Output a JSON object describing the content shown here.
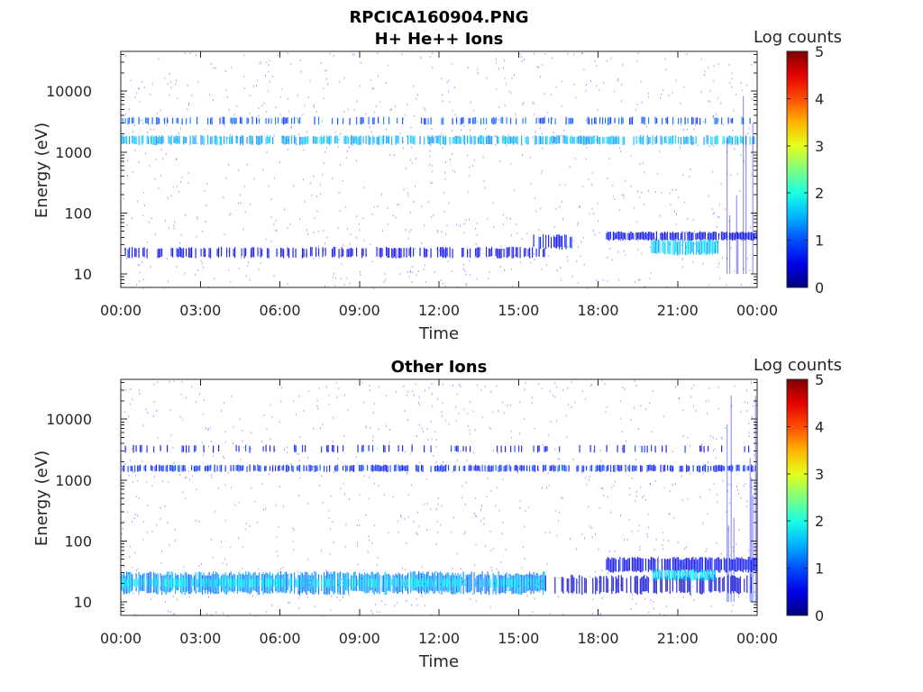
{
  "figure": {
    "title": "RPCICA160904.PNG"
  },
  "colormap": "jet",
  "chart_data": [
    {
      "type": "heatmap",
      "title": "H+ He++ Ions",
      "xlabel": "Time",
      "ylabel": "Energy (eV)",
      "x_ticks": [
        "00:00",
        "03:00",
        "06:00",
        "09:00",
        "12:00",
        "15:00",
        "18:00",
        "21:00",
        "00:00"
      ],
      "xlim_hours": [
        0,
        24
      ],
      "y_scale": "log",
      "y_ticks": [
        10,
        100,
        1000,
        10000
      ],
      "y_tick_labels": [
        "10",
        "100",
        "1000",
        "10000"
      ],
      "ylim": [
        6,
        45000
      ],
      "colorbar": {
        "label": "Log counts",
        "range": [
          0,
          5
        ],
        "ticks": [
          "0",
          "1",
          "2",
          "3",
          "4",
          "5"
        ]
      },
      "features": [
        {
          "desc": "upper energy band",
          "t_start_h": 0,
          "t_end_h": 24,
          "e_low": 2800,
          "e_high": 3800,
          "log_counts": 1.0,
          "density": 0.35
        },
        {
          "desc": "main energy band",
          "t_start_h": 0,
          "t_end_h": 24,
          "e_low": 1300,
          "e_high": 1900,
          "log_counts": 1.5,
          "density": 0.7
        },
        {
          "desc": "low energy band",
          "t_start_h": 0,
          "t_end_h": 16,
          "e_low": 18,
          "e_high": 28,
          "log_counts": 0.5,
          "density": 0.45
        },
        {
          "desc": "low energy enhancement",
          "t_start_h": 15.5,
          "t_end_h": 17.0,
          "e_low": 25,
          "e_high": 45,
          "log_counts": 0.7,
          "density": 0.5
        },
        {
          "desc": "evening band",
          "t_start_h": 18.3,
          "t_end_h": 24,
          "e_low": 35,
          "e_high": 50,
          "log_counts": 0.5,
          "density": 0.9
        },
        {
          "desc": "evening intense patch",
          "t_start_h": 20.0,
          "t_end_h": 22.5,
          "e_low": 20,
          "e_high": 38,
          "log_counts": 1.6,
          "density": 0.9
        },
        {
          "desc": "late vertical spikes",
          "t_start_h": 22.8,
          "t_end_h": 24,
          "e_low": 10,
          "e_high": 30000,
          "log_counts": 0.4,
          "density": 0.25
        }
      ]
    },
    {
      "type": "heatmap",
      "title": "Other Ions",
      "xlabel": "Time",
      "ylabel": "Energy (eV)",
      "x_ticks": [
        "00:00",
        "03:00",
        "06:00",
        "09:00",
        "12:00",
        "15:00",
        "18:00",
        "21:00",
        "00:00"
      ],
      "xlim_hours": [
        0,
        24
      ],
      "y_scale": "log",
      "y_ticks": [
        10,
        100,
        1000,
        10000
      ],
      "y_tick_labels": [
        "10",
        "100",
        "1000",
        "10000"
      ],
      "ylim": [
        6,
        45000
      ],
      "colorbar": {
        "label": "Log counts",
        "range": [
          0,
          5
        ],
        "ticks": [
          "0",
          "1",
          "2",
          "3",
          "4",
          "5"
        ]
      },
      "features": [
        {
          "desc": "upper energy band",
          "t_start_h": 0,
          "t_end_h": 24,
          "e_low": 2800,
          "e_high": 3800,
          "log_counts": 0.7,
          "density": 0.2
        },
        {
          "desc": "main energy band",
          "t_start_h": 0,
          "t_end_h": 24,
          "e_low": 1350,
          "e_high": 1800,
          "log_counts": 0.8,
          "density": 0.6
        },
        {
          "desc": "low energy band",
          "t_start_h": 0,
          "t_end_h": 16,
          "e_low": 13,
          "e_high": 32,
          "log_counts": 1.3,
          "density": 0.85
        },
        {
          "desc": "low energy band core",
          "t_start_h": 0,
          "t_end_h": 16,
          "e_low": 17,
          "e_high": 25,
          "log_counts": 1.8,
          "density": 0.6
        },
        {
          "desc": "afternoon band",
          "t_start_h": 16,
          "t_end_h": 24,
          "e_low": 13,
          "e_high": 28,
          "log_counts": 0.4,
          "density": 0.5
        },
        {
          "desc": "evening band",
          "t_start_h": 18.3,
          "t_end_h": 24,
          "e_low": 30,
          "e_high": 55,
          "log_counts": 0.6,
          "density": 0.85
        },
        {
          "desc": "evening intense patch",
          "t_start_h": 20.0,
          "t_end_h": 22.5,
          "e_low": 22,
          "e_high": 35,
          "log_counts": 1.7,
          "density": 0.9
        },
        {
          "desc": "late vertical spikes",
          "t_start_h": 22.8,
          "t_end_h": 24,
          "e_low": 10,
          "e_high": 30000,
          "log_counts": 0.5,
          "density": 0.3
        }
      ]
    }
  ]
}
